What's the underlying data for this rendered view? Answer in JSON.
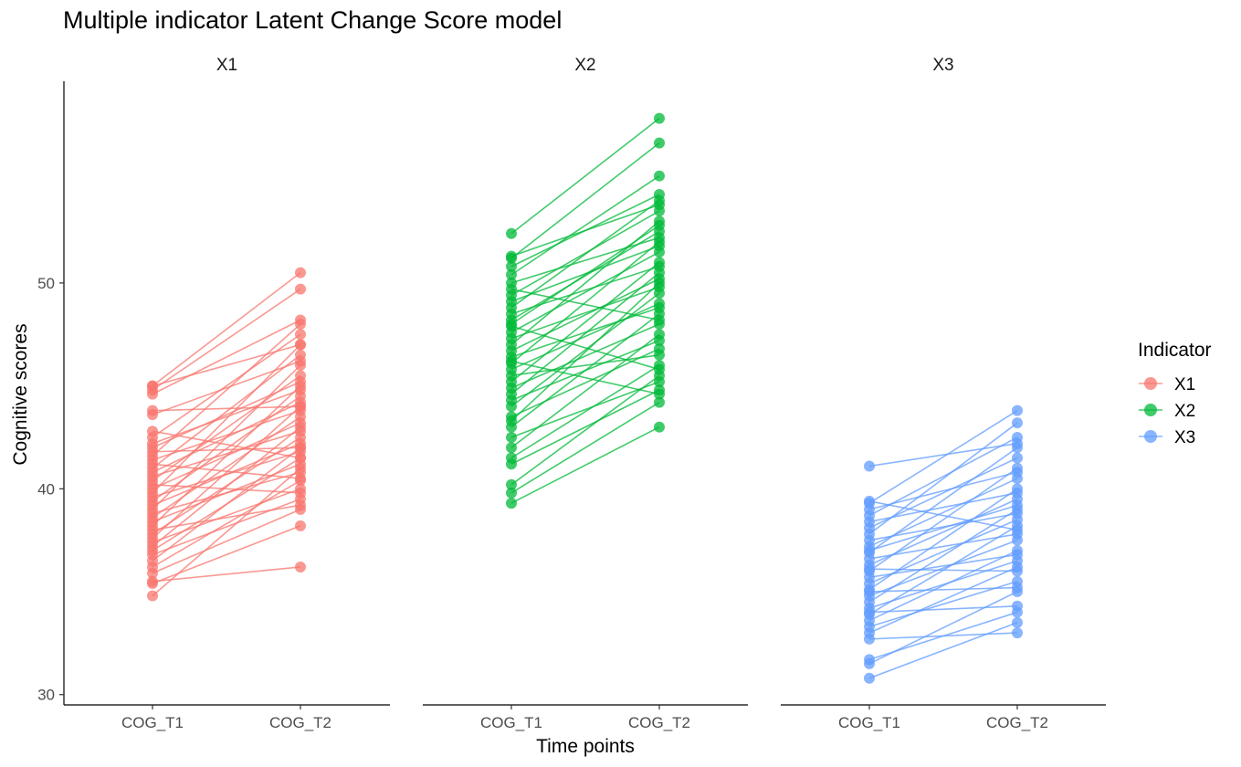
{
  "chart_data": {
    "type": "line",
    "title": "Multiple indicator Latent Change Score model",
    "xlabel": "Time points",
    "ylabel": "Cognitive scores",
    "ylim": [
      29.5,
      59.8
    ],
    "yticks": [
      30,
      40,
      50
    ],
    "categories": [
      "COG_T1",
      "COG_T2"
    ],
    "grid": false,
    "legend": {
      "title": "Indicator",
      "placement": "right"
    },
    "panels": [
      {
        "name": "X1",
        "color": "#F8766D",
        "pairs": [
          [
            34.8,
            41.0
          ],
          [
            35.4,
            38.2
          ],
          [
            35.5,
            36.2
          ],
          [
            35.9,
            39.0
          ],
          [
            36.2,
            40.4
          ],
          [
            36.5,
            42.0
          ],
          [
            36.8,
            39.5
          ],
          [
            37.0,
            41.5
          ],
          [
            37.2,
            43.0
          ],
          [
            37.4,
            40.0
          ],
          [
            37.6,
            44.0
          ],
          [
            37.8,
            42.5
          ],
          [
            38.0,
            39.2
          ],
          [
            38.2,
            45.0
          ],
          [
            38.4,
            41.2
          ],
          [
            38.6,
            43.5
          ],
          [
            38.8,
            40.8
          ],
          [
            39.0,
            46.0
          ],
          [
            39.2,
            42.2
          ],
          [
            39.4,
            44.5
          ],
          [
            39.6,
            41.8
          ],
          [
            39.8,
            47.0
          ],
          [
            40.0,
            43.2
          ],
          [
            40.2,
            39.8
          ],
          [
            40.4,
            45.5
          ],
          [
            40.6,
            42.8
          ],
          [
            40.8,
            44.2
          ],
          [
            41.0,
            46.5
          ],
          [
            41.2,
            40.5
          ],
          [
            41.4,
            43.8
          ],
          [
            41.6,
            48.0
          ],
          [
            41.8,
            42.0
          ],
          [
            42.0,
            45.2
          ],
          [
            42.2,
            44.8
          ],
          [
            42.5,
            47.5
          ],
          [
            42.8,
            41.5
          ],
          [
            43.6,
            46.2
          ],
          [
            43.8,
            44.0
          ],
          [
            44.6,
            48.2
          ],
          [
            44.8,
            49.7
          ],
          [
            45.0,
            50.5
          ],
          [
            45.0,
            47.0
          ]
        ]
      },
      {
        "name": "X2",
        "color": "#00BA38",
        "pairs": [
          [
            39.3,
            43.0
          ],
          [
            39.8,
            44.2
          ],
          [
            40.2,
            45.5
          ],
          [
            41.2,
            44.8
          ],
          [
            41.5,
            46.0
          ],
          [
            42.0,
            47.5
          ],
          [
            42.5,
            45.2
          ],
          [
            43.0,
            48.5
          ],
          [
            43.5,
            46.8
          ],
          [
            44.0,
            49.5
          ],
          [
            44.3,
            47.2
          ],
          [
            44.6,
            50.5
          ],
          [
            44.9,
            48.0
          ],
          [
            45.2,
            51.0
          ],
          [
            45.5,
            46.5
          ],
          [
            45.8,
            49.0
          ],
          [
            46.1,
            52.0
          ],
          [
            46.4,
            48.8
          ],
          [
            46.7,
            50.2
          ],
          [
            47.0,
            53.0
          ],
          [
            47.3,
            49.8
          ],
          [
            47.6,
            51.5
          ],
          [
            47.9,
            45.8
          ],
          [
            48.2,
            52.5
          ],
          [
            48.5,
            50.8
          ],
          [
            48.8,
            54.0
          ],
          [
            49.1,
            51.8
          ],
          [
            49.4,
            53.5
          ],
          [
            49.7,
            48.2
          ],
          [
            50.0,
            52.2
          ],
          [
            50.4,
            55.2
          ],
          [
            50.8,
            54.3
          ],
          [
            51.2,
            56.8
          ],
          [
            51.3,
            53.8
          ],
          [
            52.4,
            58.0
          ],
          [
            46.2,
            44.6
          ],
          [
            43.3,
            50.0
          ],
          [
            48.0,
            52.8
          ]
        ]
      },
      {
        "name": "X3",
        "color": "#619CFF",
        "pairs": [
          [
            30.8,
            33.5
          ],
          [
            31.5,
            35.0
          ],
          [
            31.7,
            34.0
          ],
          [
            32.7,
            33.0
          ],
          [
            33.0,
            36.2
          ],
          [
            33.3,
            35.5
          ],
          [
            33.6,
            37.0
          ],
          [
            33.9,
            38.2
          ],
          [
            34.2,
            36.5
          ],
          [
            34.5,
            39.0
          ],
          [
            34.8,
            37.5
          ],
          [
            35.1,
            40.0
          ],
          [
            35.4,
            38.5
          ],
          [
            35.7,
            36.8
          ],
          [
            36.0,
            41.0
          ],
          [
            36.3,
            39.5
          ],
          [
            36.6,
            37.8
          ],
          [
            36.9,
            42.0
          ],
          [
            37.2,
            40.5
          ],
          [
            37.5,
            38.8
          ],
          [
            37.8,
            43.2
          ],
          [
            38.1,
            41.5
          ],
          [
            38.4,
            39.8
          ],
          [
            38.7,
            42.5
          ],
          [
            39.0,
            40.8
          ],
          [
            39.3,
            43.8
          ],
          [
            39.4,
            38.0
          ],
          [
            41.1,
            42.2
          ],
          [
            35.0,
            35.2
          ],
          [
            36.1,
            36.0
          ],
          [
            34.0,
            34.3
          ],
          [
            37.0,
            39.2
          ]
        ]
      }
    ]
  }
}
